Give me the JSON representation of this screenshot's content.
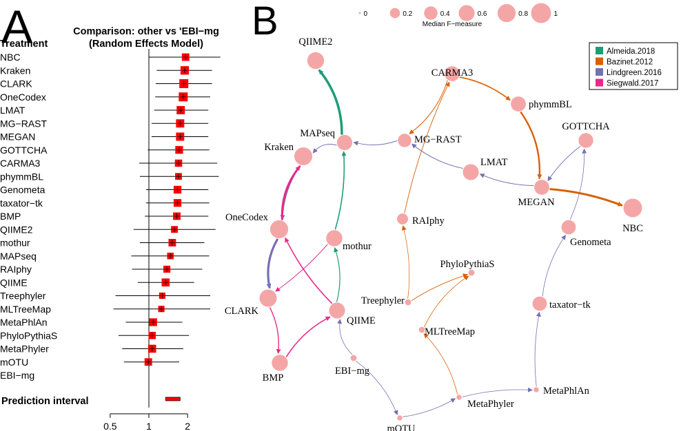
{
  "chart_data": [
    {
      "type": "forest",
      "panel_label": "A",
      "title_line1": "Comparison: other vs 'EBI−mg",
      "title_line2": "(Random Effects Model)",
      "column_header": "Treatment",
      "reference": "EBI−mg",
      "prediction_label": "Prediction interval",
      "prediction_interval": [
        1.35,
        1.75
      ],
      "x_ticks": [
        "0.5",
        "1",
        "2"
      ],
      "x_tick_values": [
        0.5,
        1,
        2
      ],
      "xscale": "log",
      "xlim": [
        0.45,
        2.4
      ],
      "rows": [
        {
          "name": "NBC",
          "est": 1.93,
          "lo": 1.0,
          "hi": 3.6,
          "w": 0.7
        },
        {
          "name": "Kraken",
          "est": 1.9,
          "lo": 1.15,
          "hi": 3.1,
          "w": 0.9
        },
        {
          "name": "CLARK",
          "est": 1.87,
          "lo": 1.13,
          "hi": 3.1,
          "w": 1.0
        },
        {
          "name": "OneCodex",
          "est": 1.85,
          "lo": 1.12,
          "hi": 3.0,
          "w": 1.0
        },
        {
          "name": "LMAT",
          "est": 1.77,
          "lo": 1.1,
          "hi": 2.9,
          "w": 0.85
        },
        {
          "name": "MG−RAST",
          "est": 1.75,
          "lo": 1.05,
          "hi": 2.9,
          "w": 0.85
        },
        {
          "name": "MEGAN",
          "est": 1.75,
          "lo": 1.05,
          "hi": 2.9,
          "w": 0.85
        },
        {
          "name": "GOTTCHA",
          "est": 1.72,
          "lo": 0.98,
          "hi": 2.95,
          "w": 0.75
        },
        {
          "name": "CARMA3",
          "est": 1.7,
          "lo": 0.84,
          "hi": 3.4,
          "w": 0.65
        },
        {
          "name": "phymmBL",
          "est": 1.7,
          "lo": 0.85,
          "hi": 3.5,
          "w": 0.55
        },
        {
          "name": "Genometa",
          "est": 1.67,
          "lo": 0.95,
          "hi": 2.9,
          "w": 0.75
        },
        {
          "name": "taxator−tk",
          "est": 1.67,
          "lo": 0.95,
          "hi": 2.95,
          "w": 0.75
        },
        {
          "name": "BMP",
          "est": 1.65,
          "lo": 0.93,
          "hi": 2.9,
          "w": 0.7
        },
        {
          "name": "QIIME2",
          "est": 1.58,
          "lo": 0.76,
          "hi": 3.3,
          "w": 0.55
        },
        {
          "name": "mothur",
          "est": 1.52,
          "lo": 0.85,
          "hi": 2.7,
          "w": 0.7
        },
        {
          "name": "MAPseq",
          "est": 1.47,
          "lo": 0.73,
          "hi": 2.95,
          "w": 0.5
        },
        {
          "name": "RAIphy",
          "est": 1.38,
          "lo": 0.74,
          "hi": 2.6,
          "w": 0.6
        },
        {
          "name": "QIIME",
          "est": 1.35,
          "lo": 0.82,
          "hi": 2.25,
          "w": 0.8
        },
        {
          "name": "Treephyler",
          "est": 1.27,
          "lo": 0.55,
          "hi": 3.0,
          "w": 0.45
        },
        {
          "name": "MLTreeMap",
          "est": 1.25,
          "lo": 0.53,
          "hi": 3.0,
          "w": 0.45
        },
        {
          "name": "MetaPhlAn",
          "est": 1.08,
          "lo": 0.66,
          "hi": 1.82,
          "w": 0.75
        },
        {
          "name": "PhyloPythiaS",
          "est": 1.06,
          "lo": 0.58,
          "hi": 2.05,
          "w": 0.65
        },
        {
          "name": "MetaPhyler",
          "est": 1.06,
          "lo": 0.62,
          "hi": 1.85,
          "w": 0.8
        },
        {
          "name": "mOTU",
          "est": 0.99,
          "lo": 0.64,
          "hi": 1.72,
          "w": 0.7
        },
        {
          "name": "EBI−mg",
          "est": null,
          "lo": null,
          "hi": null,
          "w": 0
        }
      ]
    },
    {
      "type": "network",
      "panel_label": "B",
      "size_legend": {
        "title": "Median F−measure",
        "values": [
          0,
          0.2,
          0.4,
          0.6,
          0.8,
          1
        ],
        "labels": [
          "0",
          "0.2",
          "0.4",
          "0.6",
          "0.8",
          "1"
        ]
      },
      "color_legend": [
        {
          "label": "Almeida.2018",
          "color": "#1b9e77"
        },
        {
          "label": "Bazinet.2012",
          "color": "#d95f02"
        },
        {
          "label": "Lindgreen.2016",
          "color": "#7570b3"
        },
        {
          "label": "Siegwald.2017",
          "color": "#e7298a"
        }
      ],
      "node_color": "#f4a6a6",
      "nodes": [
        {
          "id": "QIIME2",
          "label": "QIIME2",
          "f": 0.68,
          "lx": 0,
          "ly": -23,
          "anchor": "middle"
        },
        {
          "id": "CARMA3",
          "label": "CARMA3",
          "f": 0.52,
          "lx": 0,
          "ly": 3,
          "anchor": "middle"
        },
        {
          "id": "phymmBL",
          "label": "phymmBL",
          "f": 0.52,
          "lx": 15,
          "ly": 5,
          "anchor": "start"
        },
        {
          "id": "MAPseq",
          "label": "MAPseq",
          "f": 0.55,
          "lx": -14,
          "ly": -9,
          "anchor": "end"
        },
        {
          "id": "MG−RAST",
          "label": "MG−RAST",
          "f": 0.4,
          "lx": 14,
          "ly": 3,
          "anchor": "start"
        },
        {
          "id": "Kraken",
          "label": "Kraken",
          "f": 0.78,
          "lx": -14,
          "ly": -9,
          "anchor": "end"
        },
        {
          "id": "GOTTCHA",
          "label": "GOTTCHA",
          "f": 0.5,
          "lx": 0,
          "ly": -16,
          "anchor": "middle"
        },
        {
          "id": "LMAT",
          "label": "LMAT",
          "f": 0.6,
          "lx": 14,
          "ly": -10,
          "anchor": "start"
        },
        {
          "id": "MEGAN",
          "label": "MEGAN",
          "f": 0.52,
          "lx": -8,
          "ly": 26,
          "anchor": "middle"
        },
        {
          "id": "NBC",
          "label": "NBC",
          "f": 0.85,
          "lx": 0,
          "ly": 34,
          "anchor": "middle"
        },
        {
          "id": "OneCodex",
          "label": "OneCodex",
          "f": 0.8,
          "lx": -16,
          "ly": -13,
          "anchor": "end"
        },
        {
          "id": "RAIphy",
          "label": "RAIphy",
          "f": 0.25,
          "lx": 14,
          "ly": 7,
          "anchor": "start"
        },
        {
          "id": "mothur",
          "label": "mothur",
          "f": 0.62,
          "lx": 12,
          "ly": 16,
          "anchor": "start"
        },
        {
          "id": "Genometa",
          "label": "Genometa",
          "f": 0.47,
          "lx": 2,
          "ly": 26,
          "anchor": "start"
        },
        {
          "id": "PhyloPythiaS",
          "label": "PhyloPythiaS",
          "f": 0.05,
          "lx": -6,
          "ly": -8,
          "anchor": "middle"
        },
        {
          "id": "Treephyler",
          "label": "Treephyler",
          "f": 0.05,
          "lx": -5,
          "ly": 2,
          "anchor": "end"
        },
        {
          "id": "CLARK",
          "label": "CLARK",
          "f": 0.72,
          "lx": -14,
          "ly": 23,
          "anchor": "end"
        },
        {
          "id": "QIIME",
          "label": "QIIME",
          "f": 0.6,
          "lx": 14,
          "ly": 19,
          "anchor": "start"
        },
        {
          "id": "taxator−tk",
          "label": "taxator−tk",
          "f": 0.47,
          "lx": 14,
          "ly": 6,
          "anchor": "start"
        },
        {
          "id": "MLTreeMap",
          "label": "MLTreeMap",
          "f": 0.05,
          "lx": 4,
          "ly": 7,
          "anchor": "start"
        },
        {
          "id": "EBI−mg",
          "label": "EBI−mg",
          "f": 0.05,
          "lx": -2,
          "ly": 23,
          "anchor": "middle"
        },
        {
          "id": "BMP",
          "label": "BMP",
          "f": 0.62,
          "lx": -10,
          "ly": 26,
          "anchor": "middle"
        },
        {
          "id": "MetaPhlAn",
          "label": "MetaPhlAn",
          "f": 0.03,
          "lx": 10,
          "ly": 6,
          "anchor": "start"
        },
        {
          "id": "MetaPhyler",
          "label": "MetaPhyler",
          "f": 0.03,
          "lx": 12,
          "ly": 14,
          "anchor": "start"
        },
        {
          "id": "mOTU",
          "label": "mOTU",
          "f": 0.03,
          "lx": 2,
          "ly": 20,
          "anchor": "middle"
        }
      ],
      "edges": [
        {
          "from": "MAPseq",
          "to": "QIIME2",
          "study": "Almeida.2018",
          "w": 3.5
        },
        {
          "from": "mothur",
          "to": "MAPseq",
          "study": "Almeida.2018",
          "w": 1.6
        },
        {
          "from": "QIIME",
          "to": "mothur",
          "study": "Almeida.2018",
          "w": 1.2
        },
        {
          "from": "EBI−mg",
          "to": "QIIME",
          "study": "Lindgreen.2016",
          "w": 0.8
        },
        {
          "from": "MAPseq",
          "to": "Kraken",
          "study": "Lindgreen.2016",
          "w": 1.0
        },
        {
          "from": "MG−RAST",
          "to": "MAPseq",
          "study": "Lindgreen.2016",
          "w": 1.0
        },
        {
          "from": "Kraken",
          "to": "OneCodex",
          "study": "Lindgreen.2016",
          "w": 1.4
        },
        {
          "from": "OneCodex",
          "to": "Kraken",
          "study": "Siegwald.2017",
          "w": 3.0
        },
        {
          "from": "OneCodex",
          "to": "CLARK",
          "study": "Lindgreen.2016",
          "w": 3.2
        },
        {
          "from": "mothur",
          "to": "CLARK",
          "study": "Siegwald.2017",
          "w": 1.0
        },
        {
          "from": "QIIME",
          "to": "OneCodex",
          "study": "Siegwald.2017",
          "w": 1.6
        },
        {
          "from": "CLARK",
          "to": "BMP",
          "study": "Siegwald.2017",
          "w": 1.4
        },
        {
          "from": "BMP",
          "to": "QIIME",
          "study": "Siegwald.2017",
          "w": 1.6
        },
        {
          "from": "CARMA3",
          "to": "MG−RAST",
          "study": "Bazinet.2012",
          "w": 1.0
        },
        {
          "from": "CARMA3",
          "to": "phymmBL",
          "study": "Bazinet.2012",
          "w": 1.6
        },
        {
          "from": "phymmBL",
          "to": "MEGAN",
          "study": "Bazinet.2012",
          "w": 2.4
        },
        {
          "from": "MEGAN",
          "to": "NBC",
          "study": "Bazinet.2012",
          "w": 3.0
        },
        {
          "from": "RAIphy",
          "to": "CARMA3",
          "study": "Bazinet.2012",
          "w": 0.9
        },
        {
          "from": "Treephyler",
          "to": "RAIphy",
          "study": "Bazinet.2012",
          "w": 0.7
        },
        {
          "from": "Treephyler",
          "to": "PhyloPythiaS",
          "study": "Bazinet.2012",
          "w": 0.9
        },
        {
          "from": "MLTreeMap",
          "to": "PhyloPythiaS",
          "study": "Bazinet.2012",
          "w": 0.8
        },
        {
          "from": "MetaPhyler",
          "to": "MLTreeMap",
          "study": "Bazinet.2012",
          "w": 0.8
        },
        {
          "from": "MEGAN",
          "to": "LMAT",
          "study": "Lindgreen.2016",
          "w": 1.0
        },
        {
          "from": "LMAT",
          "to": "MG−RAST",
          "study": "Lindgreen.2016",
          "w": 1.0
        },
        {
          "from": "GOTTCHA",
          "to": "MEGAN",
          "study": "Lindgreen.2016",
          "w": 1.0
        },
        {
          "from": "Genometa",
          "to": "GOTTCHA",
          "study": "Lindgreen.2016",
          "w": 0.8
        },
        {
          "from": "taxator−tk",
          "to": "Genometa",
          "study": "Lindgreen.2016",
          "w": 0.8
        },
        {
          "from": "MetaPhlAn",
          "to": "taxator−tk",
          "study": "Lindgreen.2016",
          "w": 0.8
        },
        {
          "from": "MetaPhyler",
          "to": "MetaPhlAn",
          "study": "Lindgreen.2016",
          "w": 0.8
        },
        {
          "from": "mOTU",
          "to": "MetaPhyler",
          "study": "Lindgreen.2016",
          "w": 0.8
        },
        {
          "from": "EBI−mg",
          "to": "mOTU",
          "study": "Lindgreen.2016",
          "w": 0.8
        }
      ]
    }
  ]
}
